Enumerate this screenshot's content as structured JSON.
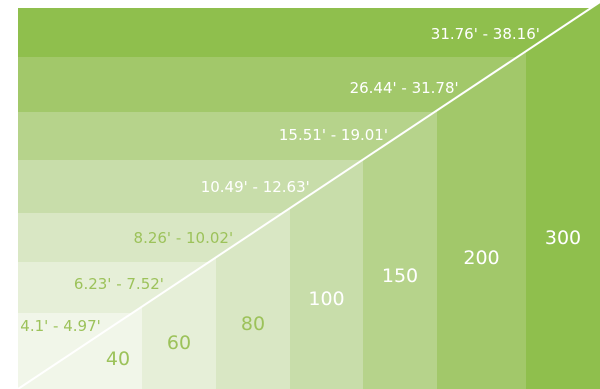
{
  "bands": [
    {
      "range": "31.76' - 38.16'",
      "color": "#8fbf4d",
      "text_color": "#ffffff"
    },
    {
      "range": "26.44' - 31.78'",
      "color": "#a2c86a",
      "text_color": "#ffffff"
    },
    {
      "range": "15.51' - 19.01'",
      "color": "#b6d38b",
      "text_color": "#ffffff"
    },
    {
      "range": "10.49' - 12.63'",
      "color": "#c8ddaa",
      "text_color": "#ffffff"
    },
    {
      "range": "8.26' - 10.02'",
      "color": "#d9e7c4",
      "text_color": "#9cc25a"
    },
    {
      "range": "6.23' - 7.52'",
      "color": "#e6efd8",
      "text_color": "#9cc25a"
    },
    {
      "range": "4.1' - 4.97'",
      "color": "#f1f6e9",
      "text_color": "#9cc25a"
    }
  ],
  "columns": [
    {
      "value": "40",
      "color": "#f1f6e9",
      "text_color": "#9cc25a"
    },
    {
      "value": "60",
      "color": "#e6efd8",
      "text_color": "#9cc25a"
    },
    {
      "value": "80",
      "color": "#d9e7c4",
      "text_color": "#9cc25a"
    },
    {
      "value": "100",
      "color": "#c8ddaa",
      "text_color": "#ffffff"
    },
    {
      "value": "150",
      "color": "#b6d38b",
      "text_color": "#ffffff"
    },
    {
      "value": "200",
      "color": "#a2c86a",
      "text_color": "#ffffff"
    },
    {
      "value": "300",
      "color": "#8fbf4d",
      "text_color": "#ffffff"
    }
  ],
  "diagonal_color": "#ffffff"
}
